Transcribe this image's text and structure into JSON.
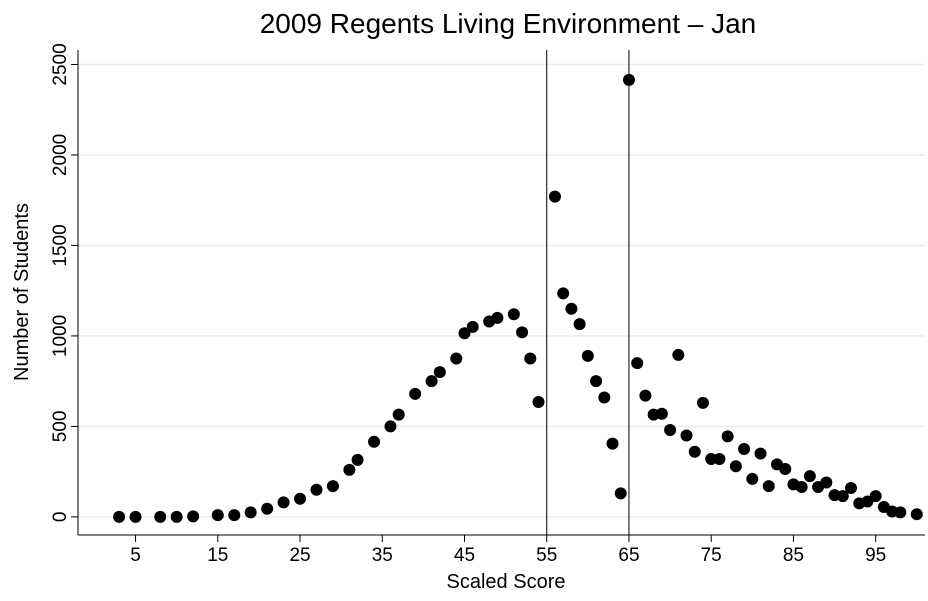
{
  "chart_data": {
    "type": "scatter",
    "title": "2009 Regents Living Environment – Jan",
    "x_label": "Scaled Score",
    "y_label": "Number of Students",
    "x": [
      3,
      5,
      8,
      10,
      12,
      15,
      17,
      19,
      21,
      23,
      25,
      27,
      29,
      31,
      32,
      34,
      36,
      37,
      39,
      41,
      42,
      44,
      45,
      46,
      48,
      49,
      51,
      52,
      53,
      54,
      56,
      57,
      58,
      59,
      60,
      61,
      62,
      63,
      64,
      65,
      66,
      67,
      68,
      69,
      70,
      71,
      72,
      73,
      74,
      75,
      76,
      77,
      78,
      79,
      80,
      81,
      82,
      83,
      84,
      85,
      86,
      87,
      88,
      89,
      90,
      91,
      92,
      93,
      94,
      95,
      96,
      97,
      98,
      100
    ],
    "values": [
      0,
      0,
      0,
      0,
      3,
      10,
      10,
      25,
      45,
      80,
      100,
      150,
      170,
      260,
      315,
      415,
      500,
      565,
      680,
      750,
      800,
      875,
      1015,
      1050,
      1080,
      1100,
      1120,
      1020,
      875,
      635,
      1770,
      1235,
      1150,
      1065,
      890,
      750,
      660,
      405,
      130,
      2415,
      850,
      670,
      565,
      570,
      480,
      895,
      450,
      360,
      630,
      320,
      320,
      445,
      280,
      375,
      210,
      350,
      170,
      290,
      265,
      180,
      165,
      225,
      165,
      190,
      120,
      115,
      160,
      75,
      85,
      115,
      55,
      30,
      25,
      15
    ],
    "color": "#000000",
    "xlim": [
      -2,
      101
    ],
    "ylim": [
      -100,
      2580
    ],
    "xticks": [
      5,
      15,
      25,
      35,
      45,
      55,
      65,
      75,
      85,
      95
    ],
    "yticks": [
      0,
      500,
      1000,
      1500,
      2000,
      2500
    ],
    "vlines": [
      55,
      65
    ],
    "grid": true
  }
}
